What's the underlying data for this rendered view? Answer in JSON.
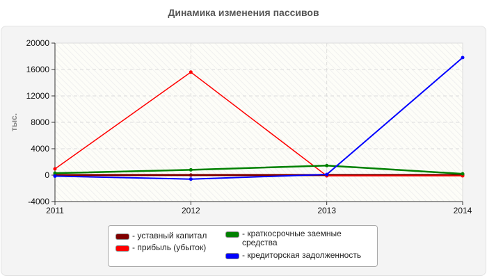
{
  "title": "Динамика изменения пассивов",
  "chart_data": {
    "type": "line",
    "title": "Динамика изменения пассивов",
    "xlabel": "",
    "ylabel": "тыс.",
    "x": [
      "2011",
      "2012",
      "2013",
      "2014"
    ],
    "ylim": [
      -4000,
      20000
    ],
    "yticks": [
      -4000,
      0,
      4000,
      8000,
      12000,
      16000,
      20000
    ],
    "grid": true,
    "legend_position": "bottom",
    "series": [
      {
        "name": "уставный капитал",
        "color": "#800000",
        "values": [
          10,
          10,
          10,
          10
        ]
      },
      {
        "name": "прибыль (убыток)",
        "color": "#ff0000",
        "values": [
          950,
          15600,
          -100,
          -100
        ]
      },
      {
        "name": "краткосрочные заемные средства",
        "color": "#008000",
        "values": [
          300,
          800,
          1450,
          200
        ]
      },
      {
        "name": "кредиторская задолженность",
        "color": "#0000ff",
        "values": [
          -150,
          -600,
          100,
          17800
        ]
      }
    ]
  },
  "legend": {
    "items": [
      {
        "label": "- уставный капитал",
        "color": "#800000"
      },
      {
        "label": "- прибыль (убыток)",
        "color": "#ff0000"
      },
      {
        "label": "- краткосрочные заемные средства",
        "color": "#008000"
      },
      {
        "label": "- кредиторская задолженность",
        "color": "#0000ff"
      }
    ]
  }
}
